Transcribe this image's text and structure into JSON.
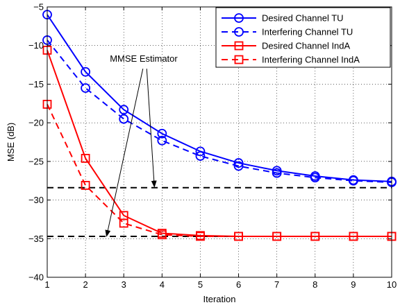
{
  "chart_data": {
    "type": "line",
    "xlabel": "Iteration",
    "ylabel": "MSE (dB)",
    "xlim": [
      1,
      10
    ],
    "ylim": [
      -40,
      -5
    ],
    "xticks": [
      1,
      2,
      3,
      4,
      5,
      6,
      7,
      8,
      9,
      10
    ],
    "yticks": [
      -5,
      -10,
      -15,
      -20,
      -25,
      -30,
      -35,
      -40
    ],
    "grid": "dotted",
    "legend": "top-right",
    "x": [
      1,
      2,
      3,
      4,
      5,
      6,
      7,
      8,
      9,
      10
    ],
    "series": [
      {
        "name": "Desired Channel TU",
        "color": "#0000ff",
        "style": "solid",
        "marker": "circle",
        "values": [
          -6.0,
          -13.4,
          -18.3,
          -21.4,
          -23.7,
          -25.2,
          -26.2,
          -26.9,
          -27.4,
          -27.6
        ]
      },
      {
        "name": "Interfering Channel TU",
        "color": "#0000ff",
        "style": "dashed",
        "marker": "circle",
        "values": [
          -9.3,
          -15.5,
          -19.5,
          -22.3,
          -24.3,
          -25.6,
          -26.5,
          -27.1,
          -27.5,
          -27.7
        ]
      },
      {
        "name": "Desired Channel IndA",
        "color": "#ff0000",
        "style": "solid",
        "marker": "square",
        "values": [
          -10.6,
          -24.6,
          -32.0,
          -34.3,
          -34.6,
          -34.7,
          -34.7,
          -34.7,
          -34.7,
          -34.7
        ]
      },
      {
        "name": "Interfering Channel IndA",
        "color": "#ff0000",
        "style": "dashed",
        "marker": "square",
        "values": [
          -17.6,
          -28.1,
          -33.0,
          -34.5,
          -34.7,
          -34.7,
          -34.7,
          -34.7,
          -34.7,
          -34.7
        ]
      }
    ],
    "reference_lines": [
      {
        "y": -28.4,
        "color": "#000000",
        "style": "dashed"
      },
      {
        "y": -34.7,
        "color": "#000000",
        "style": "dashed"
      }
    ],
    "annotation": {
      "text": "MMSE Estimator",
      "text_at": [
        3.0,
        -12.1
      ],
      "arrows": [
        {
          "from": [
            3.6,
            -13.0
          ],
          "to": [
            3.8,
            -28.3
          ]
        },
        {
          "from": [
            3.5,
            -13.0
          ],
          "to": [
            2.55,
            -34.7
          ]
        }
      ]
    }
  }
}
